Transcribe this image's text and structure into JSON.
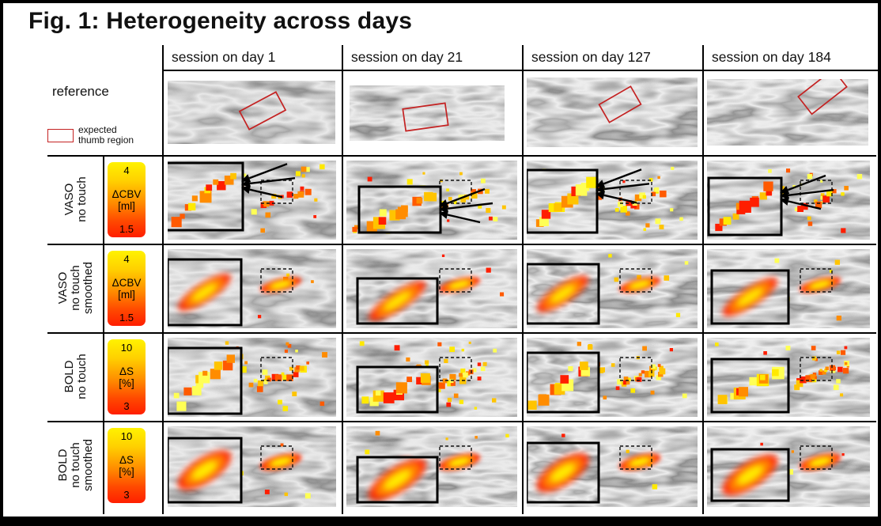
{
  "figure": {
    "title": "Fig. 1: Heterogeneity across days"
  },
  "header": {
    "columns": [
      "session on day 1",
      "session on day 21",
      "session on day 127",
      "session on day 184"
    ]
  },
  "reference": {
    "label": "reference",
    "legend_label": "expected\nthumb region"
  },
  "rows": [
    {
      "id": "vaso-notouch",
      "label": "VASO\nno touch",
      "colorbar": {
        "max": "4",
        "name": "ΔCBV",
        "unit": "[ml]",
        "min": "1.5"
      }
    },
    {
      "id": "vaso-notouch-smoothed",
      "label": "VASO\nno touch\nsmoothed",
      "colorbar": {
        "max": "4",
        "name": "ΔCBV",
        "unit": "[ml]",
        "min": "1.5"
      }
    },
    {
      "id": "bold-notouch",
      "label": "BOLD\nno touch",
      "colorbar": {
        "max": "10",
        "name": "ΔS",
        "unit": "[%]",
        "min": "3"
      }
    },
    {
      "id": "bold-notouch-smoothed",
      "label": "BOLD\nno touch\nsmoothed",
      "colorbar": {
        "max": "10",
        "name": "ΔS",
        "unit": "[%]",
        "min": "3"
      }
    }
  ],
  "colors": {
    "hot_max": "#ffee00",
    "hot_mid": "#ff8800",
    "hot_min": "#ff1e00",
    "reference_box": "#c42222",
    "grid_line": "#000000"
  }
}
